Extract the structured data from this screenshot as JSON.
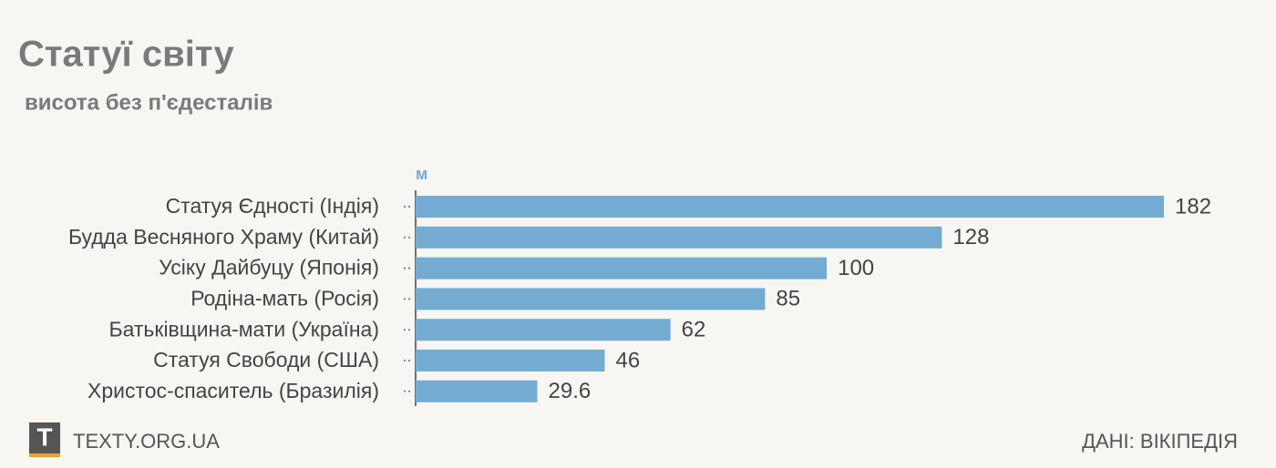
{
  "chart_data": {
    "type": "bar",
    "orientation": "horizontal",
    "title": "Статуї світу",
    "subtitle": "висота без п'єдесталів",
    "unit": "м",
    "categories": [
      "Статуя Єдності (Індія)",
      "Будда Весняного Храму (Китай)",
      "Усіку Дайбуцу (Японія)",
      "Родіна-мать (Росія)",
      "Батьківщина-мати (Україна)",
      "Статуя Свободи (США)",
      "Христос-спаситель (Бразилія)"
    ],
    "values": [
      182,
      128,
      100,
      85,
      62,
      46,
      29.6
    ],
    "color": "#74abd3"
  },
  "footer": {
    "logo": "T",
    "brand": "TEXTY.ORG.UA",
    "source": "ДАНІ: ВІКІПЕДІЯ"
  }
}
